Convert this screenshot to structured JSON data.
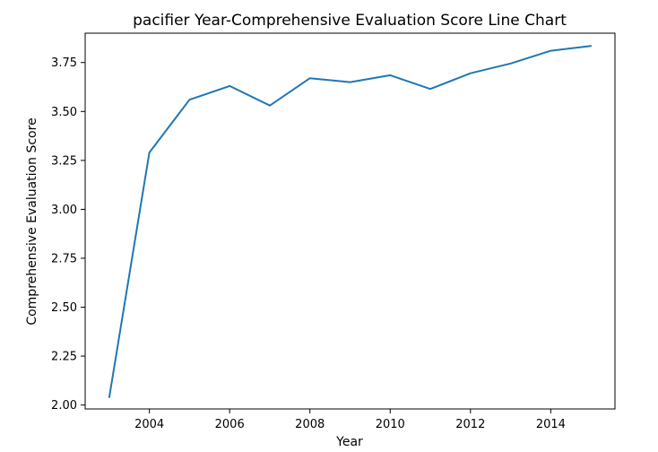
{
  "chart_data": {
    "type": "line",
    "title": "pacifier Year-Comprehensive Evaluation Score Line Chart",
    "xlabel": "Year",
    "ylabel": "Comprehensive Evaluation Score",
    "x": [
      2003,
      2004,
      2005,
      2006,
      2007,
      2008,
      2009,
      2010,
      2011,
      2012,
      2013,
      2014,
      2015
    ],
    "series": [
      {
        "values": [
          2.04,
          3.29,
          3.56,
          3.63,
          3.53,
          3.67,
          3.65,
          3.685,
          3.615,
          3.695,
          3.745,
          3.81,
          3.835
        ],
        "color": "#1f77b4"
      }
    ],
    "xlim": [
      2002.4,
      2015.6
    ],
    "ylim": [
      1.98,
      3.9
    ],
    "xticks": [
      2004,
      2006,
      2008,
      2010,
      2012,
      2014
    ],
    "xtick_labels": [
      "2004",
      "2006",
      "2008",
      "2010",
      "2012",
      "2014"
    ],
    "yticks": [
      2.0,
      2.25,
      2.5,
      2.75,
      3.0,
      3.25,
      3.5,
      3.75
    ],
    "ytick_labels": [
      "2.00",
      "2.25",
      "2.50",
      "2.75",
      "3.00",
      "3.25",
      "3.50",
      "3.75"
    ],
    "grid": false,
    "legend": false
  }
}
